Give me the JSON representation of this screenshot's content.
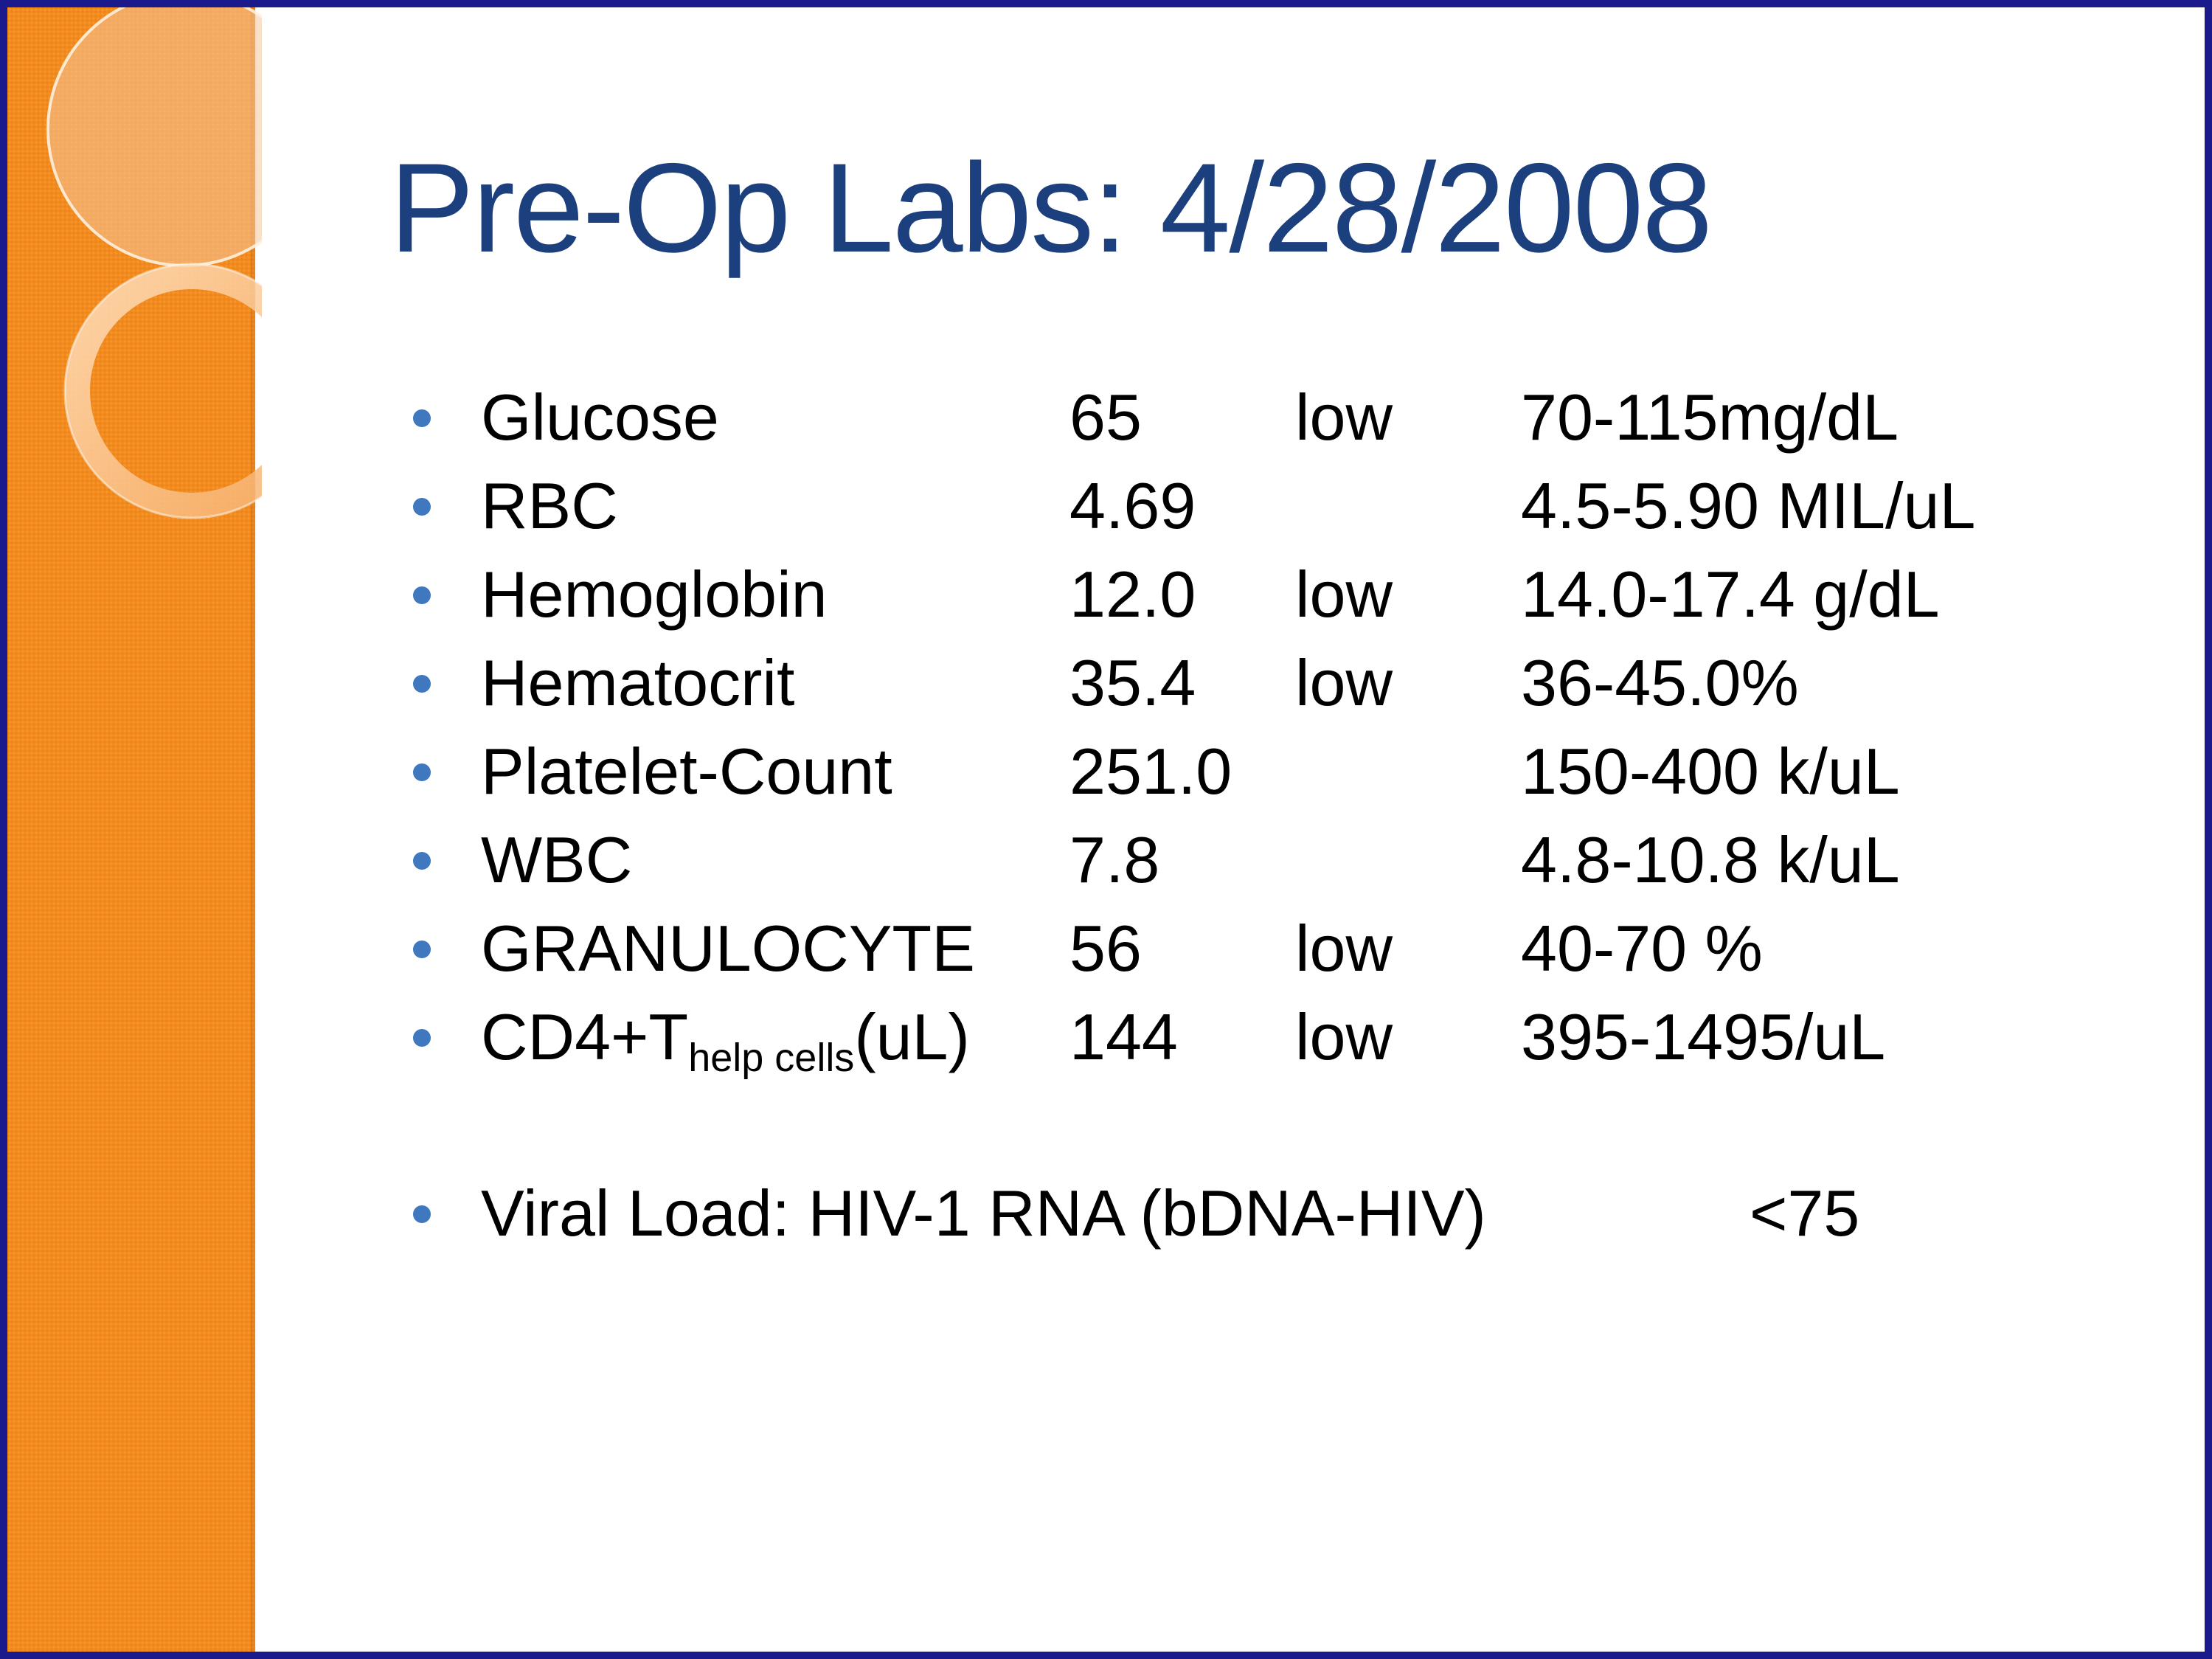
{
  "slide": {
    "title": "Pre-Op Labs: 4/28/2008",
    "labs": [
      {
        "name": "Glucose",
        "value": "65",
        "flag": "low",
        "range": "70-115mg/dL"
      },
      {
        "name": "RBC",
        "value": "4.69",
        "flag": "",
        "range": "4.5-5.90 MIL/uL"
      },
      {
        "name": "Hemoglobin",
        "value": "12.0",
        "flag": "low",
        "range": "14.0-17.4 g/dL"
      },
      {
        "name": "Hematocrit",
        "value": "35.4",
        "flag": "low",
        "range": "36-45.0%"
      },
      {
        "name": "Platelet-Count",
        "value": "251.0",
        "flag": "",
        "range": "150-400 k/uL"
      },
      {
        "name": "WBC",
        "value": "7.8",
        "flag": "",
        "range": "4.8-10.8 k/uL"
      },
      {
        "name": "GRANULOCYTE",
        "value": "56",
        "flag": "low",
        "range": "40-70 %"
      },
      {
        "name": "CD4+T",
        "name_subscript": "help cells",
        "name_suffix": "(uL)",
        "value": "144",
        "flag": "low",
        "range": "395-1495/uL"
      }
    ],
    "viral_load": {
      "label": "Viral Load: HIV-1 RNA (bDNA-HIV)",
      "value": "<75"
    }
  },
  "colors": {
    "title": "#1c3f7e",
    "bullet": "#3f78bf",
    "side_band": "#f28a1c",
    "frame_border": "#1a1a8c"
  }
}
